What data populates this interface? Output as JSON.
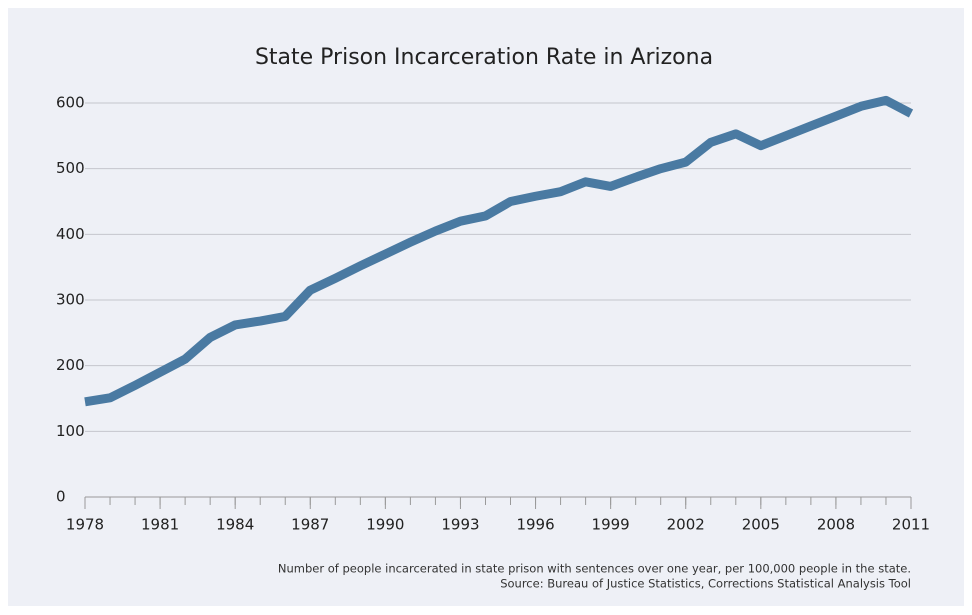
{
  "chart_data": {
    "type": "line",
    "title": "State Prison Incarceration Rate in Arizona",
    "notes": [
      "Number of people incarcerated in state prison with sentences over one year, per 100,000 people in the state.",
      "Source: Bureau of Justice Statistics, Corrections Statistical Analysis Tool"
    ],
    "x": [
      1978,
      1979,
      1980,
      1981,
      1982,
      1983,
      1984,
      1985,
      1986,
      1987,
      1988,
      1989,
      1990,
      1991,
      1992,
      1993,
      1994,
      1995,
      1996,
      1997,
      1998,
      1999,
      2000,
      2001,
      2002,
      2003,
      2004,
      2005,
      2006,
      2007,
      2008,
      2009,
      2010,
      2011
    ],
    "series": [
      {
        "name": "Arizona",
        "color": "#4a7aa2",
        "values": [
          145,
          151,
          170,
          190,
          210,
          243,
          262,
          268,
          275,
          315,
          333,
          352,
          370,
          388,
          405,
          420,
          428,
          450,
          458,
          465,
          480,
          473,
          487,
          500,
          510,
          540,
          553,
          535,
          550,
          565,
          580,
          595,
          604,
          584
        ]
      }
    ],
    "xlim": [
      1978,
      2011
    ],
    "xticks": [
      1978,
      1981,
      1984,
      1987,
      1990,
      1993,
      1996,
      1999,
      2002,
      2005,
      2008,
      2011
    ],
    "ylim": [
      0,
      600
    ],
    "yticks": [
      0,
      100,
      200,
      300,
      400,
      500,
      600
    ],
    "grid": true
  }
}
